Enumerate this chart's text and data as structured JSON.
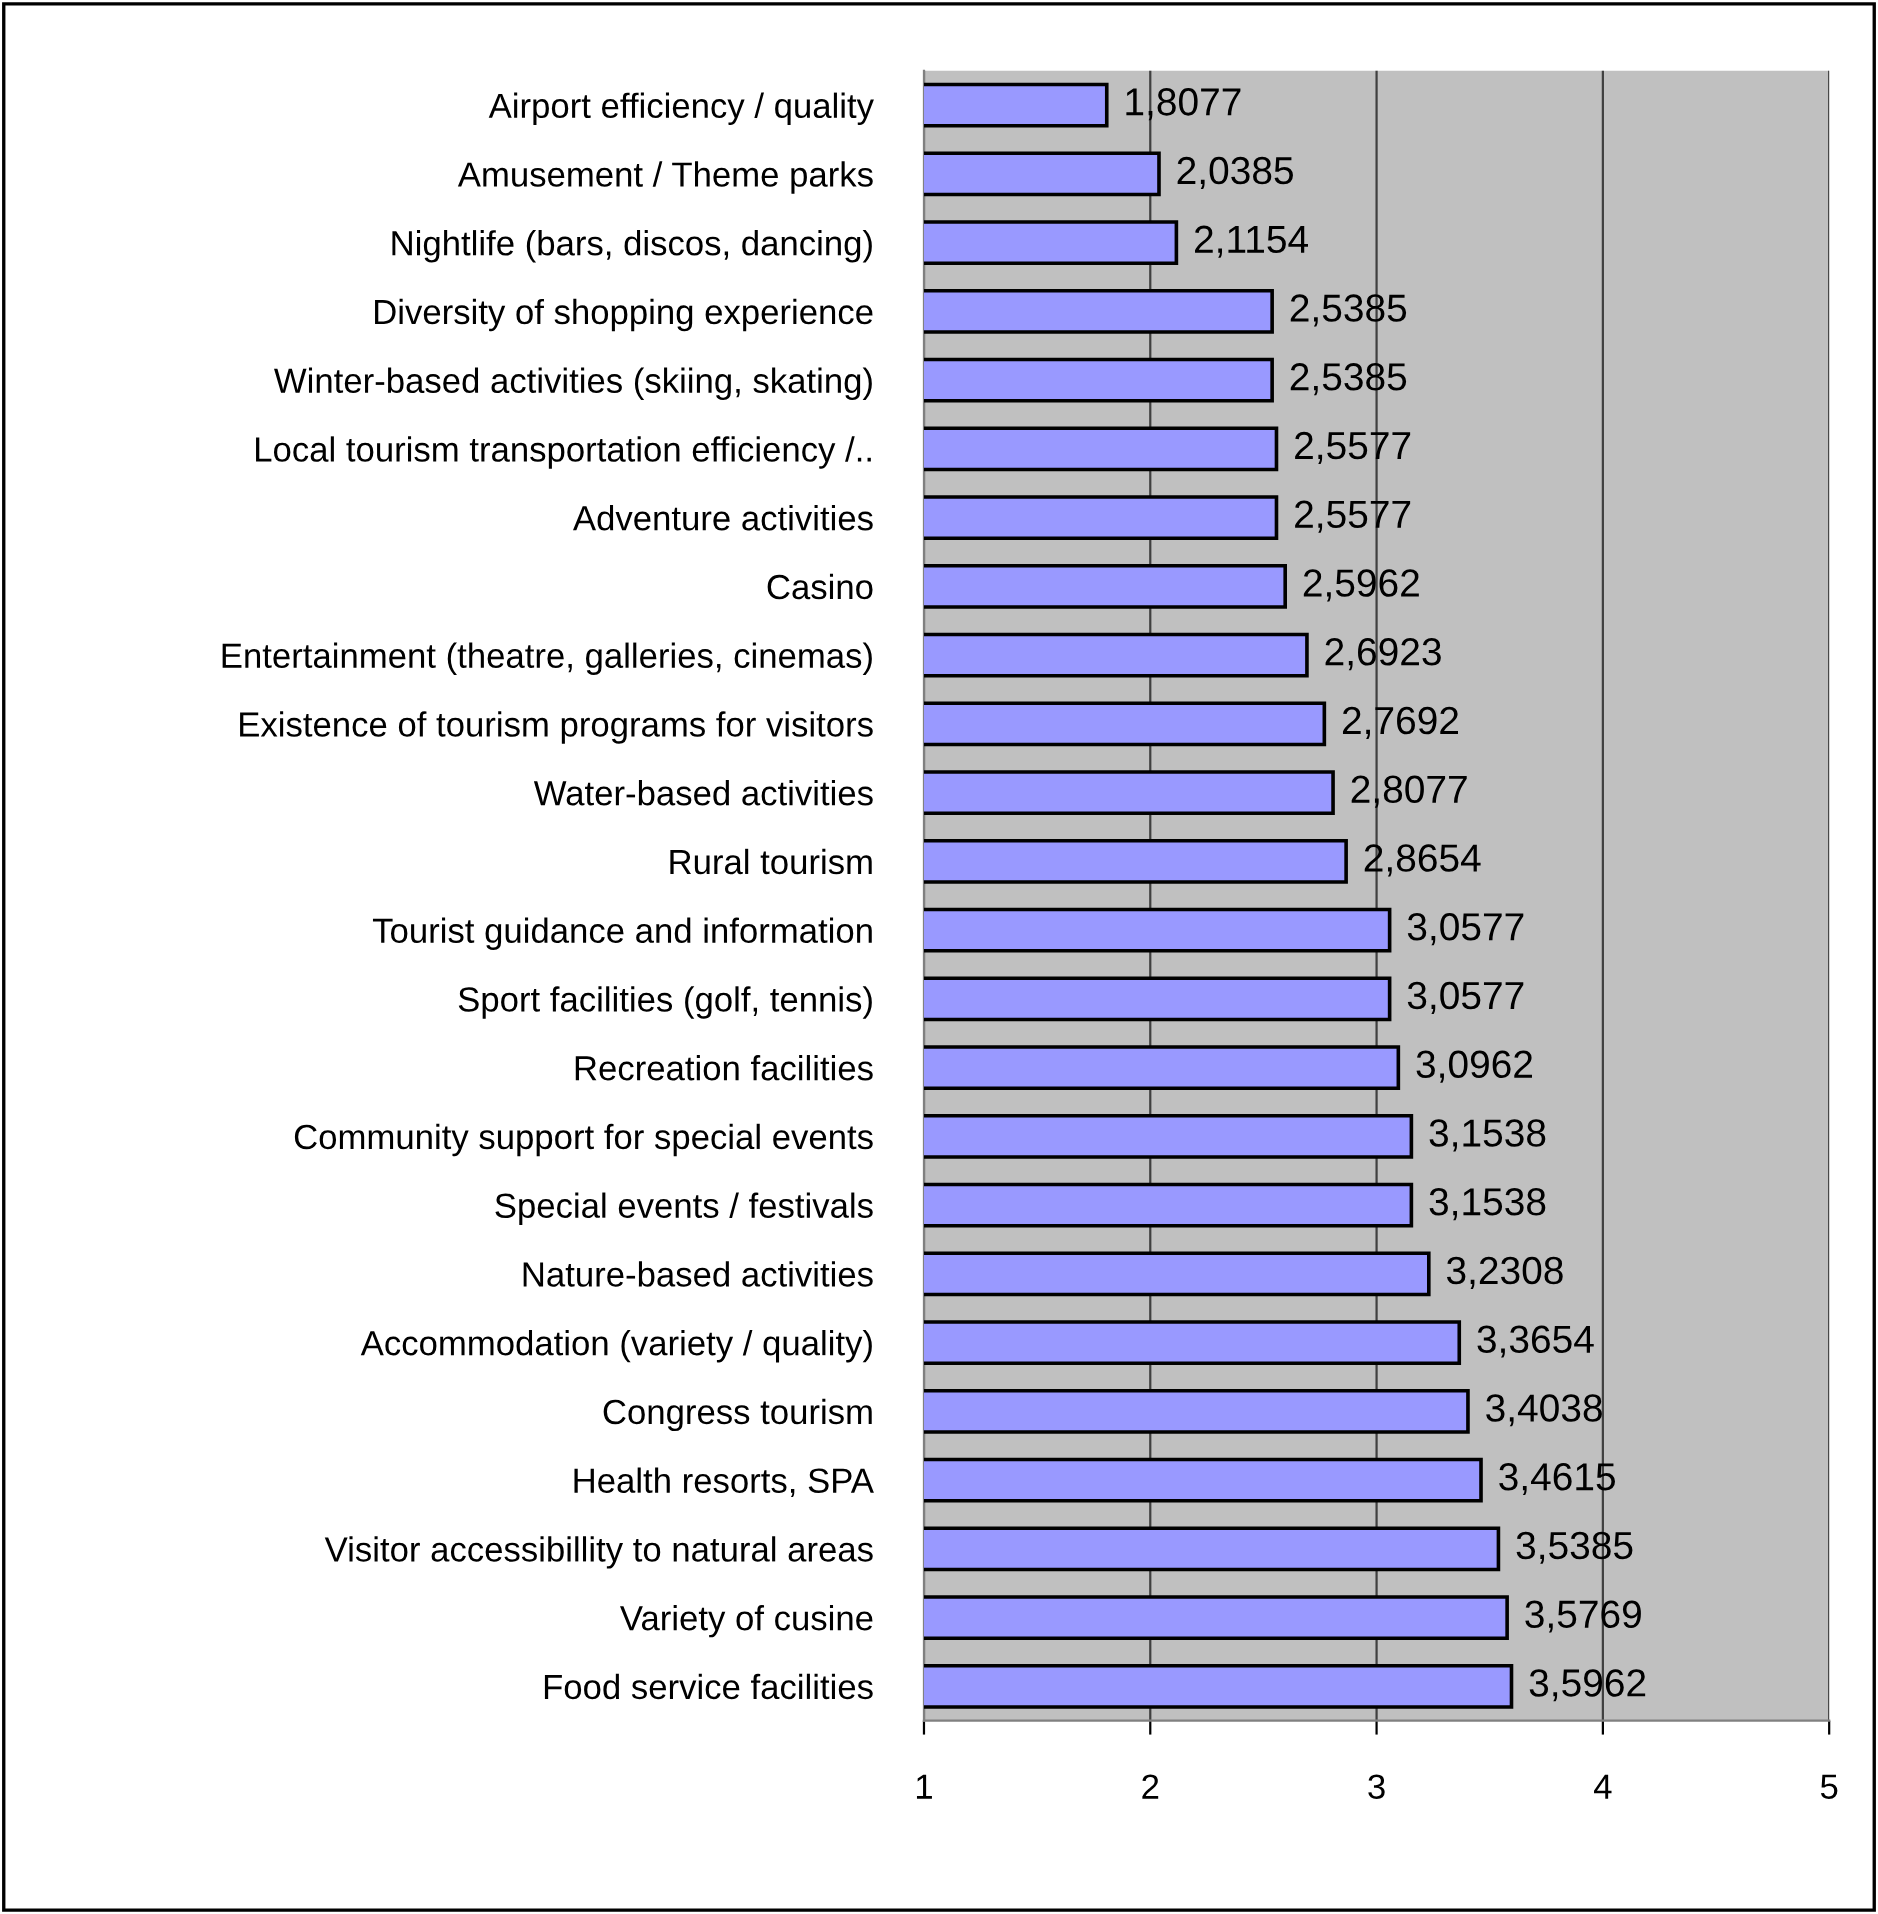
{
  "chart_data": {
    "type": "bar",
    "orientation": "horizontal",
    "categories": [
      "Airport efficiency / quality",
      "Amusement / Theme parks",
      "Nightlife (bars, discos, dancing)",
      "Diversity of shopping experience",
      "Winter-based activities (skiing, skating)",
      "Local tourism transportation efficiency /..",
      "Adventure activities",
      "Casino",
      "Entertainment (theatre, galleries, cinemas)",
      "Existence of tourism programs for visitors",
      "Water-based activities",
      "Rural tourism",
      "Tourist guidance and information",
      "Sport facilities (golf, tennis)",
      "Recreation facilities",
      "Community support for special events",
      "Special events / festivals",
      "Nature-based activities",
      "Accommodation (variety / quality)",
      "Congress tourism",
      "Health resorts, SPA",
      "Visitor accessibillity to natural areas",
      "Variety of cusine",
      "Food service facilities"
    ],
    "values": [
      1.8077,
      2.0385,
      2.1154,
      2.5385,
      2.5385,
      2.5577,
      2.5577,
      2.5962,
      2.6923,
      2.7692,
      2.8077,
      2.8654,
      3.0577,
      3.0577,
      3.0962,
      3.1538,
      3.1538,
      3.2308,
      3.3654,
      3.4038,
      3.4615,
      3.5385,
      3.5769,
      3.5962
    ],
    "value_labels": [
      "1,8077",
      "2,0385",
      "2,1154",
      "2,5385",
      "2,5385",
      "2,5577",
      "2,5577",
      "2,5962",
      "2,6923",
      "2,7692",
      "2,8077",
      "2,8654",
      "3,0577",
      "3,0577",
      "3,0962",
      "3,1538",
      "3,1538",
      "3,2308",
      "3,3654",
      "3,4038",
      "3,4615",
      "3,5385",
      "3,5769",
      "3,5962"
    ],
    "color": "#9999ff",
    "xlim": [
      1,
      5
    ],
    "xticks": [
      1,
      2,
      3,
      4,
      5
    ],
    "grid": "x"
  }
}
